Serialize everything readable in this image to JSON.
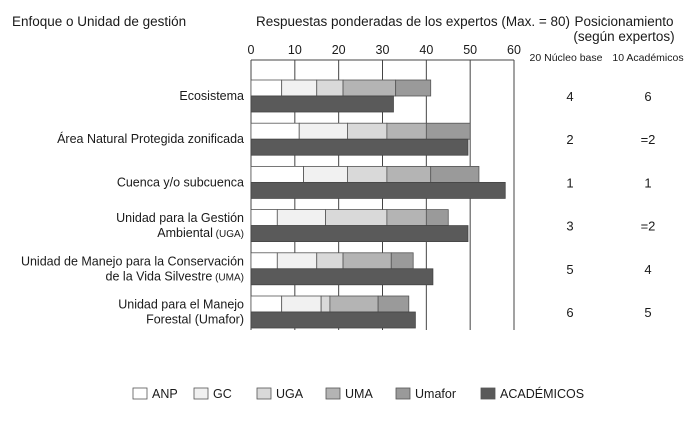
{
  "header": {
    "focus": "Enfoque o Unidad de gestión",
    "responses": "Respuestas ponderadas de los expertos  (Max. = 80)",
    "ranking_line1": "Posicionamiento",
    "ranking_line2": "(según expertos)",
    "col1": "20 Núcleo base",
    "col2": "10 Académicos"
  },
  "colors": {
    "ANP": "#ffffff",
    "GC": "#f1f1f1",
    "UGA": "#d9d9d9",
    "UMA": "#b4b4b4",
    "Umafor": "#9a9a9a",
    "ACADÉMICOS": "#5a5a5a",
    "stroke": "#555555"
  },
  "chart_data": {
    "type": "bar",
    "orientation": "horizontal",
    "stacked_series": [
      "ANP",
      "GC",
      "UGA",
      "UMA",
      "Umafor"
    ],
    "total_series": "ACADÉMICOS",
    "xlim": [
      0,
      60
    ],
    "xticks": [
      0,
      10,
      20,
      30,
      40,
      50,
      60
    ],
    "xlabel": "Respuestas ponderadas de los expertos  (Max. = 80)",
    "categories": [
      {
        "label_lines": [
          "Ecosistema"
        ],
        "small_suffix": "",
        "segments": [
          7,
          8,
          6,
          12,
          8
        ],
        "academicos": 32.5,
        "rank_nucleo": "4",
        "rank_academicos": "6"
      },
      {
        "label_lines": [
          "Área Natural Protegida zonificada"
        ],
        "small_suffix": "",
        "segments": [
          11,
          11,
          9,
          9,
          10
        ],
        "academicos": 49.5,
        "rank_nucleo": "2",
        "rank_academicos": "=2"
      },
      {
        "label_lines": [
          "Cuenca y/o subcuenca"
        ],
        "small_suffix": "",
        "segments": [
          12,
          10,
          9,
          10,
          11
        ],
        "academicos": 58,
        "rank_nucleo": "1",
        "rank_academicos": "1"
      },
      {
        "label_lines": [
          "Unidad para la Gestión",
          "Ambiental"
        ],
        "small_suffix": "(UGA)",
        "segments": [
          6,
          11,
          14,
          9,
          5
        ],
        "academicos": 49.5,
        "rank_nucleo": "3",
        "rank_academicos": "=2"
      },
      {
        "label_lines": [
          "Unidad de Manejo para la Conservación",
          "de la Vida Silvestre"
        ],
        "small_suffix": "(UMA)",
        "segments": [
          6,
          9,
          6,
          11,
          5
        ],
        "academicos": 41.5,
        "rank_nucleo": "5",
        "rank_academicos": "4"
      },
      {
        "label_lines": [
          "Unidad para el Manejo",
          "Forestal (Umafor)"
        ],
        "small_suffix": "",
        "segments": [
          7,
          9,
          2,
          11,
          7
        ],
        "academicos": 37.5,
        "rank_nucleo": "6",
        "rank_academicos": "5"
      }
    ],
    "legend": [
      "ANP",
      "GC",
      "UGA",
      "UMA",
      "Umafor",
      "ACADÉMICOS"
    ],
    "legend_position": "bottom"
  }
}
